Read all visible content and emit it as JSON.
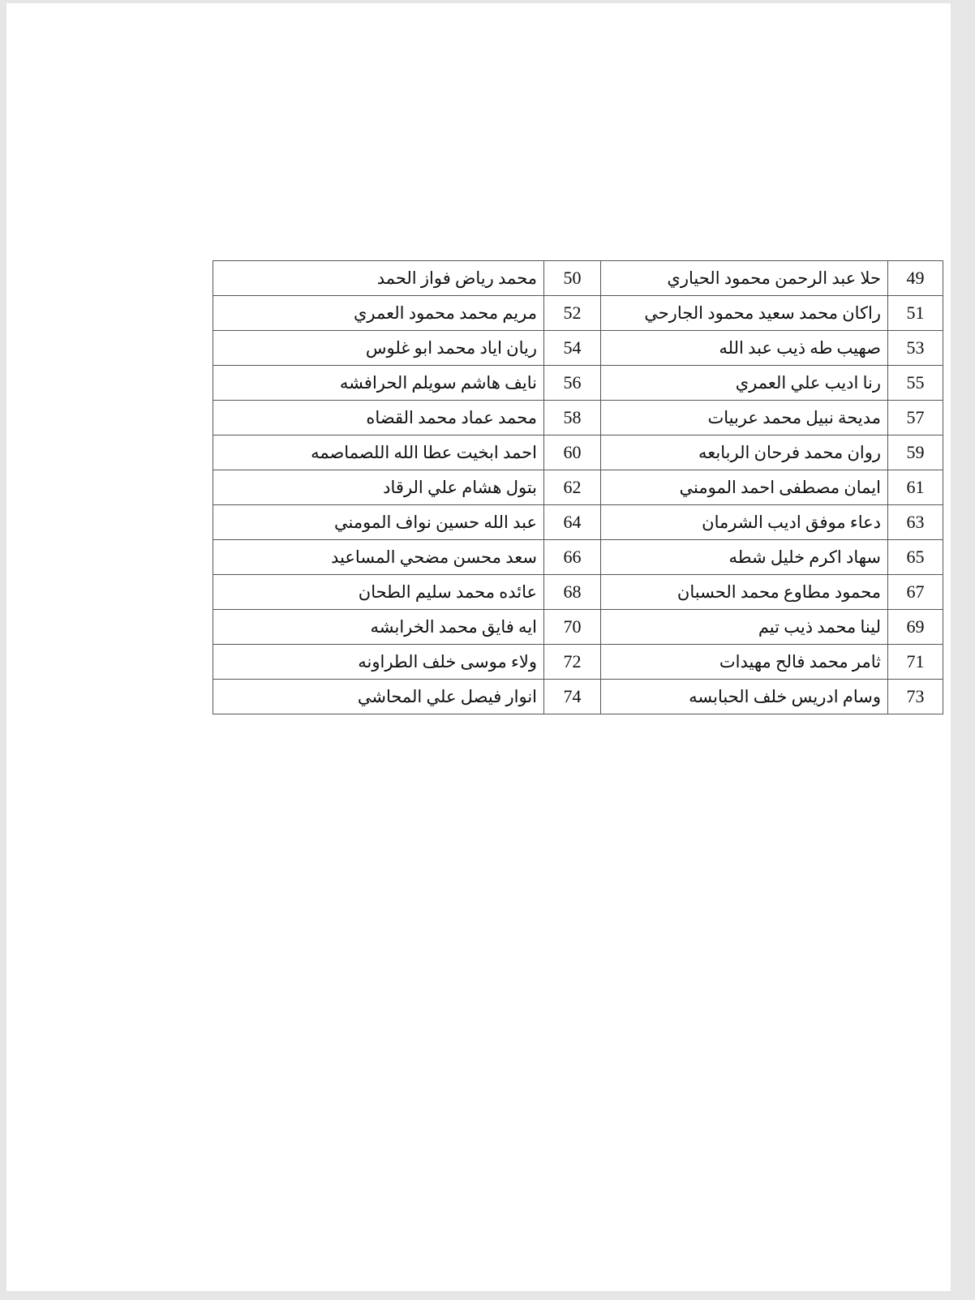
{
  "rows": [
    {
      "n1": "49",
      "name1": "حلا عبد الرحمن محمود الحياري",
      "n2": "50",
      "name2": "محمد رياض فواز الحمد"
    },
    {
      "n1": "51",
      "name1": "راكان محمد سعيد محمود الجارحي",
      "n2": "52",
      "name2": "مريم محمد محمود العمري"
    },
    {
      "n1": "53",
      "name1": "صهيب طه ذيب عبد الله",
      "n2": "54",
      "name2": "ريان اياد محمد ابو غلوس"
    },
    {
      "n1": "55",
      "name1": "رنا اديب علي العمري",
      "n2": "56",
      "name2": "نايف هاشم سويلم الحرافشه"
    },
    {
      "n1": "57",
      "name1": "مديحة نبيل محمد عربيات",
      "n2": "58",
      "name2": "محمد عماد محمد القضاه"
    },
    {
      "n1": "59",
      "name1": "روان محمد فرحان الربابعه",
      "n2": "60",
      "name2": "احمد ابخيت عطا الله اللصماصمه"
    },
    {
      "n1": "61",
      "name1": "ايمان مصطفى احمد المومني",
      "n2": "62",
      "name2": "بتول هشام علي الرقاد"
    },
    {
      "n1": "63",
      "name1": "دعاء موفق اديب الشرمان",
      "n2": "64",
      "name2": "عبد الله حسين نواف المومني"
    },
    {
      "n1": "65",
      "name1": "سهاد اكرم خليل شطه",
      "n2": "66",
      "name2": "سعد محسن مضحي المساعيد"
    },
    {
      "n1": "67",
      "name1": "محمود مطاوع محمد الحسبان",
      "n2": "68",
      "name2": "عائده محمد سليم الطحان"
    },
    {
      "n1": "69",
      "name1": "لينا محمد ذيب تيم",
      "n2": "70",
      "name2": "ايه فايق محمد الخرابشه"
    },
    {
      "n1": "71",
      "name1": "ثامر محمد فالح مهيدات",
      "n2": "72",
      "name2": "ولاء موسى خلف الطراونه"
    },
    {
      "n1": "73",
      "name1": "وسام ادريس خلف الحبابسه",
      "n2": "74",
      "name2": "انوار فيصل علي المحاشي"
    }
  ]
}
